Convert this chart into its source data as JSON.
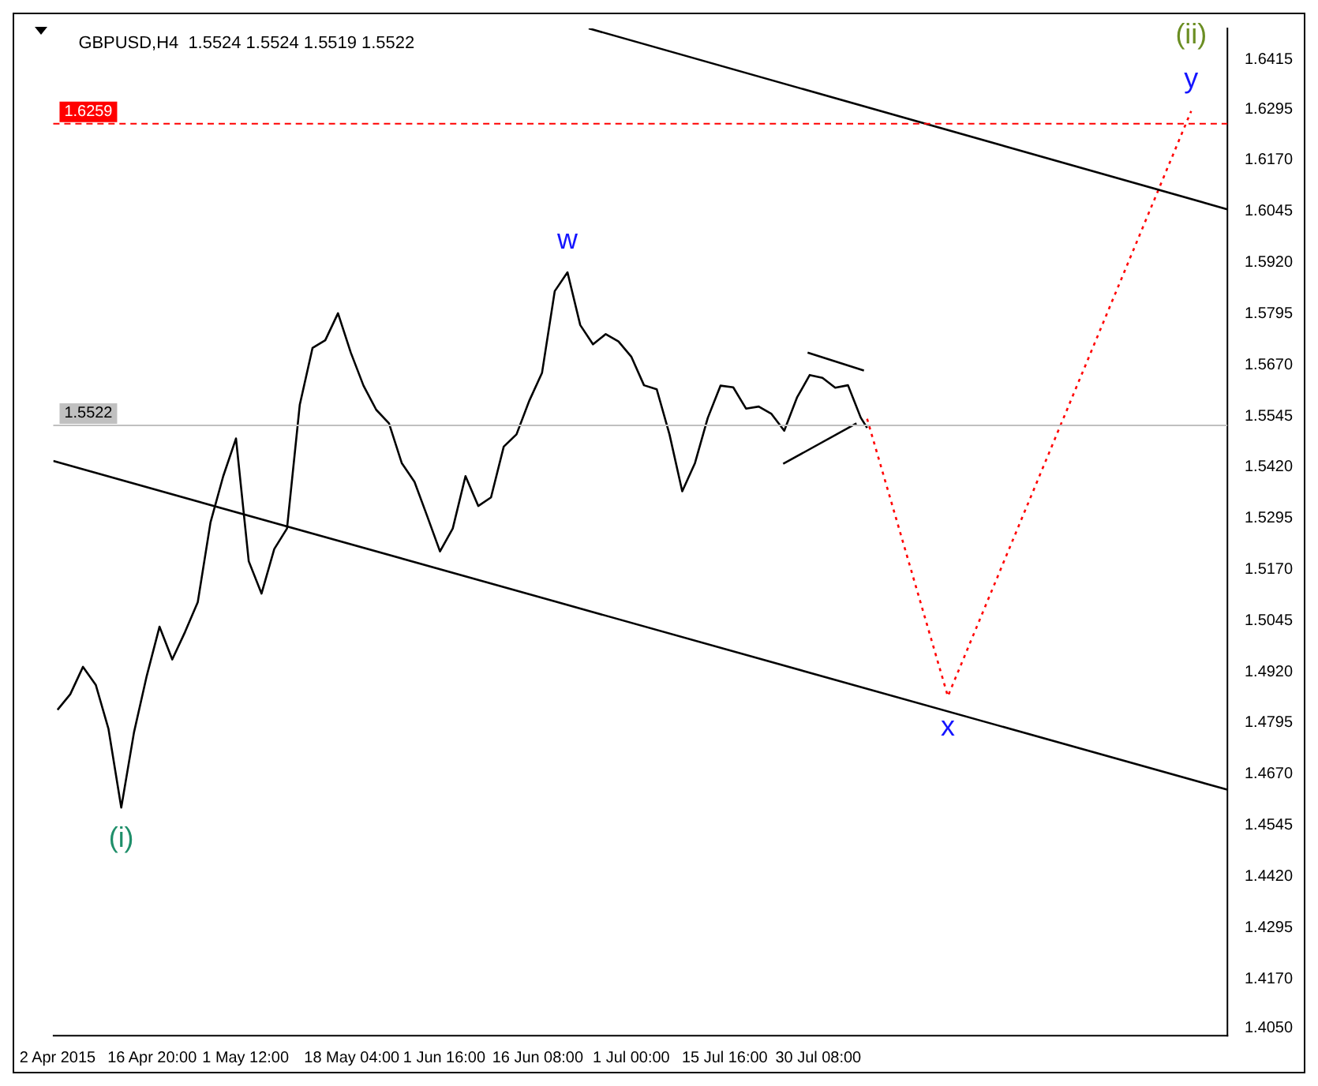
{
  "chart_data": {
    "type": "line",
    "title": "GBPUSD,H4  1.5524 1.5524 1.5519 1.5522",
    "xlim": [
      "2015-04-01T08:00",
      "2015-10-02T12:00"
    ],
    "xticks": [
      {
        "value": "2015-04-02T00:00",
        "label": "2 Apr 2015"
      },
      {
        "value": "2015-04-16T20:00",
        "label": "16 Apr 20:00"
      },
      {
        "value": "2015-05-01T12:00",
        "label": "1 May 12:00"
      },
      {
        "value": "2015-05-18T04:00",
        "label": "18 May 04:00"
      },
      {
        "value": "2015-06-01T16:00",
        "label": "1 Jun 16:00"
      },
      {
        "value": "2015-06-16T08:00",
        "label": "16 Jun 08:00"
      },
      {
        "value": "2015-07-01T00:00",
        "label": "1 Jul 00:00"
      },
      {
        "value": "2015-07-15T16:00",
        "label": "15 Jul 16:00"
      },
      {
        "value": "2015-07-30T08:00",
        "label": "30 Jul 08:00"
      }
    ],
    "ylim": [
      1.4031,
      1.6492
    ],
    "yticks": [
      {
        "value": 1.405,
        "label": "1.4050"
      },
      {
        "value": 1.417,
        "label": "1.4170"
      },
      1.4295,
      {
        "value": 1.442,
        "label": "1.4420"
      },
      1.4545,
      {
        "value": 1.467,
        "label": "1.4670"
      },
      1.4795,
      {
        "value": 1.492,
        "label": "1.4920"
      },
      1.5045,
      {
        "value": 1.517,
        "label": "1.5170"
      },
      1.5295,
      {
        "value": 1.542,
        "label": "1.5420"
      },
      1.5545,
      {
        "value": 1.567,
        "label": "1.5670"
      },
      1.5795,
      {
        "value": 1.592,
        "label": "1.5920"
      },
      1.6045,
      {
        "value": 1.617,
        "label": "1.6170"
      },
      1.6295,
      1.6415
    ],
    "grid": false,
    "legend": false,
    "marker": "none",
    "series": [
      {
        "color": "#000000",
        "x": [
          "2015-04-02",
          "2015-04-04",
          "2015-04-06",
          "2015-04-08",
          "2015-04-10",
          "2015-04-12",
          "2015-04-14",
          "2015-04-16",
          "2015-04-18",
          "2015-04-20",
          "2015-04-22",
          "2015-04-24",
          "2015-04-26",
          "2015-04-28",
          "2015-04-30",
          "2015-05-02",
          "2015-05-04",
          "2015-05-06",
          "2015-05-08",
          "2015-05-10",
          "2015-05-12",
          "2015-05-14",
          "2015-05-16",
          "2015-05-18",
          "2015-05-20",
          "2015-05-22",
          "2015-05-24",
          "2015-05-26",
          "2015-05-28",
          "2015-05-30",
          "2015-06-01",
          "2015-06-03",
          "2015-06-05",
          "2015-06-07",
          "2015-06-09",
          "2015-06-11",
          "2015-06-13",
          "2015-06-15",
          "2015-06-17",
          "2015-06-19",
          "2015-06-21",
          "2015-06-23",
          "2015-06-25",
          "2015-06-27",
          "2015-06-29",
          "2015-07-01",
          "2015-07-03",
          "2015-07-05",
          "2015-07-07",
          "2015-07-09",
          "2015-07-11",
          "2015-07-13",
          "2015-07-15",
          "2015-07-17",
          "2015-07-19",
          "2015-07-21",
          "2015-07-23",
          "2015-07-25",
          "2015-07-27",
          "2015-07-29",
          "2015-07-31",
          "2015-08-02",
          "2015-08-04",
          "2015-08-06",
          "2015-08-07"
        ],
        "values": [
          1.4827,
          1.4865,
          1.4932,
          1.4888,
          1.478,
          1.4588,
          1.4772,
          1.491,
          1.503,
          1.495,
          1.5017,
          1.509,
          1.5285,
          1.5398,
          1.549,
          1.519,
          1.5111,
          1.522,
          1.527,
          1.5572,
          1.5711,
          1.573,
          1.5796,
          1.57,
          1.5619,
          1.556,
          1.5527,
          1.543,
          1.5384,
          1.53,
          1.5214,
          1.527,
          1.5398,
          1.5325,
          1.5346,
          1.547,
          1.55,
          1.5582,
          1.565,
          1.585,
          1.5896,
          1.5767,
          1.572,
          1.5745,
          1.5727,
          1.569,
          1.562,
          1.561,
          1.55,
          1.5361,
          1.543,
          1.554,
          1.5619,
          1.5615,
          1.5563,
          1.5568,
          1.555,
          1.5509,
          1.559,
          1.5645,
          1.5638,
          1.5614,
          1.562,
          1.5541,
          1.5516
        ]
      },
      {
        "color": "#000000",
        "x": [
          "2015-06-24T08:00",
          "2015-10-02T12:00"
        ],
        "values": [
          1.6492,
          1.605
        ]
      },
      {
        "color": "#000000",
        "x": [
          "2015-04-01T08:00",
          "2015-10-02T12:00"
        ],
        "values": [
          1.5435,
          1.4632
        ]
      },
      {
        "color": "#000000",
        "x": [
          "2015-07-28T16:00",
          "2015-08-06T12:00"
        ],
        "values": [
          1.57,
          1.5656
        ]
      },
      {
        "color": "#000000",
        "x": [
          "2015-07-24T20:00",
          "2015-08-05T08:00"
        ],
        "values": [
          1.5428,
          1.5527
        ]
      },
      {
        "color": "#ff0000",
        "line_style": "dotted",
        "x": [
          "2015-08-07T00:00",
          "2015-08-19T16:00",
          "2015-09-26T20:00"
        ],
        "values": [
          1.5538,
          1.486,
          1.629
        ]
      }
    ],
    "ref_lines": [
      {
        "axis": "y",
        "value": 1.6259,
        "label": "1.6259",
        "color": "#ff0000",
        "line_style": "dashed"
      },
      {
        "axis": "y",
        "value": 1.5522,
        "label": "1.5522",
        "color": "#c0c0c0",
        "line_style": "solid"
      }
    ],
    "annotations": [
      {
        "text": "w",
        "x": "2015-06-21",
        "y": 1.5896
      },
      {
        "text": "x",
        "x": "2015-08-19T16:00",
        "y": 1.486
      },
      {
        "text": "y",
        "x": "2015-09-26T20:00",
        "y": 1.629
      },
      {
        "text": "(i)",
        "x": "2015-04-12",
        "y": 1.4588
      },
      {
        "text": "(ii)",
        "x": "2015-09-26T20:00",
        "y": 1.629
      }
    ]
  }
}
